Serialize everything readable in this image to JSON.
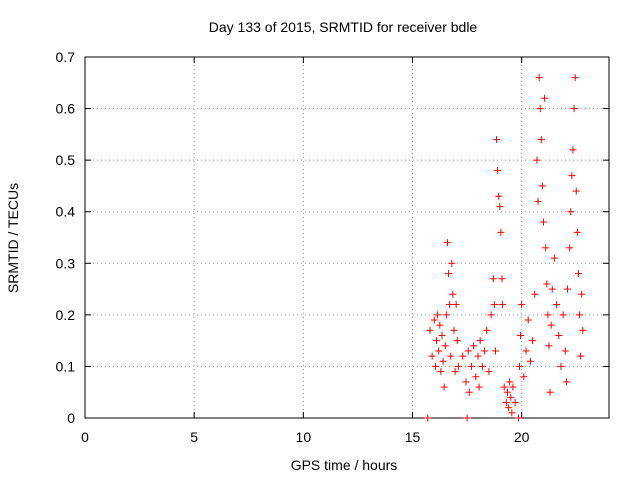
{
  "chart_data": {
    "type": "scatter",
    "title": "Day 133 of 2015, SRMTID for receiver bdle",
    "xlabel": "GPS time / hours",
    "ylabel": "SRMTID / TECUs",
    "xlim": [
      0,
      24
    ],
    "ylim": [
      0,
      0.7
    ],
    "xticks": [
      0,
      5,
      10,
      15,
      20
    ],
    "yticks": [
      0,
      0.1,
      0.2,
      0.3,
      0.4,
      0.5,
      0.6,
      0.7
    ],
    "grid": true,
    "marker": "+",
    "color": "#ff0000",
    "series": [
      {
        "name": "SRMTID",
        "points": [
          [
            15.7,
            0.0
          ],
          [
            17.5,
            0.0
          ],
          [
            19.85,
            0.0
          ],
          [
            15.8,
            0.17
          ],
          [
            15.9,
            0.12
          ],
          [
            16.0,
            0.19
          ],
          [
            16.05,
            0.1
          ],
          [
            16.1,
            0.15
          ],
          [
            16.15,
            0.2
          ],
          [
            16.2,
            0.13
          ],
          [
            16.25,
            0.18
          ],
          [
            16.3,
            0.09
          ],
          [
            16.35,
            0.16
          ],
          [
            16.4,
            0.11
          ],
          [
            16.45,
            0.06
          ],
          [
            16.5,
            0.14
          ],
          [
            16.55,
            0.2
          ],
          [
            16.6,
            0.34
          ],
          [
            16.65,
            0.28
          ],
          [
            16.7,
            0.22
          ],
          [
            16.75,
            0.12
          ],
          [
            16.8,
            0.3
          ],
          [
            16.85,
            0.24
          ],
          [
            16.9,
            0.17
          ],
          [
            16.95,
            0.09
          ],
          [
            17.0,
            0.22
          ],
          [
            17.05,
            0.15
          ],
          [
            17.1,
            0.1
          ],
          [
            17.3,
            0.12
          ],
          [
            17.45,
            0.07
          ],
          [
            17.55,
            0.13
          ],
          [
            17.6,
            0.05
          ],
          [
            17.7,
            0.1
          ],
          [
            17.8,
            0.14
          ],
          [
            17.9,
            0.08
          ],
          [
            18.0,
            0.12
          ],
          [
            18.05,
            0.06
          ],
          [
            18.1,
            0.15
          ],
          [
            18.2,
            0.1
          ],
          [
            18.3,
            0.13
          ],
          [
            18.4,
            0.17
          ],
          [
            18.5,
            0.09
          ],
          [
            18.6,
            0.2
          ],
          [
            18.7,
            0.27
          ],
          [
            18.75,
            0.22
          ],
          [
            18.8,
            0.13
          ],
          [
            18.85,
            0.54
          ],
          [
            18.9,
            0.48
          ],
          [
            18.95,
            0.43
          ],
          [
            19.0,
            0.41
          ],
          [
            19.05,
            0.36
          ],
          [
            19.1,
            0.27
          ],
          [
            19.12,
            0.22
          ],
          [
            19.2,
            0.06
          ],
          [
            19.3,
            0.03
          ],
          [
            19.35,
            0.05
          ],
          [
            19.4,
            0.02
          ],
          [
            19.45,
            0.07
          ],
          [
            19.5,
            0.04
          ],
          [
            19.55,
            0.01
          ],
          [
            19.6,
            0.06
          ],
          [
            19.7,
            0.03
          ],
          [
            19.9,
            0.1
          ],
          [
            19.95,
            0.16
          ],
          [
            20.0,
            0.22
          ],
          [
            20.1,
            0.08
          ],
          [
            20.2,
            0.13
          ],
          [
            20.3,
            0.19
          ],
          [
            20.4,
            0.11
          ],
          [
            20.5,
            0.15
          ],
          [
            20.6,
            0.24
          ],
          [
            20.7,
            0.5
          ],
          [
            20.75,
            0.42
          ],
          [
            20.8,
            0.66
          ],
          [
            20.85,
            0.6
          ],
          [
            20.9,
            0.54
          ],
          [
            20.95,
            0.45
          ],
          [
            21.0,
            0.38
          ],
          [
            21.05,
            0.62
          ],
          [
            21.1,
            0.33
          ],
          [
            21.15,
            0.26
          ],
          [
            21.2,
            0.2
          ],
          [
            21.25,
            0.14
          ],
          [
            21.3,
            0.05
          ],
          [
            21.35,
            0.18
          ],
          [
            21.4,
            0.25
          ],
          [
            21.5,
            0.31
          ],
          [
            21.6,
            0.22
          ],
          [
            21.7,
            0.16
          ],
          [
            21.8,
            0.1
          ],
          [
            21.9,
            0.2
          ],
          [
            22.0,
            0.13
          ],
          [
            22.05,
            0.07
          ],
          [
            22.1,
            0.25
          ],
          [
            22.2,
            0.33
          ],
          [
            22.25,
            0.4
          ],
          [
            22.3,
            0.47
          ],
          [
            22.35,
            0.52
          ],
          [
            22.4,
            0.6
          ],
          [
            22.45,
            0.66
          ],
          [
            22.5,
            0.44
          ],
          [
            22.55,
            0.36
          ],
          [
            22.6,
            0.28
          ],
          [
            22.65,
            0.2
          ],
          [
            22.7,
            0.12
          ],
          [
            22.75,
            0.24
          ],
          [
            22.8,
            0.17
          ]
        ]
      }
    ]
  }
}
